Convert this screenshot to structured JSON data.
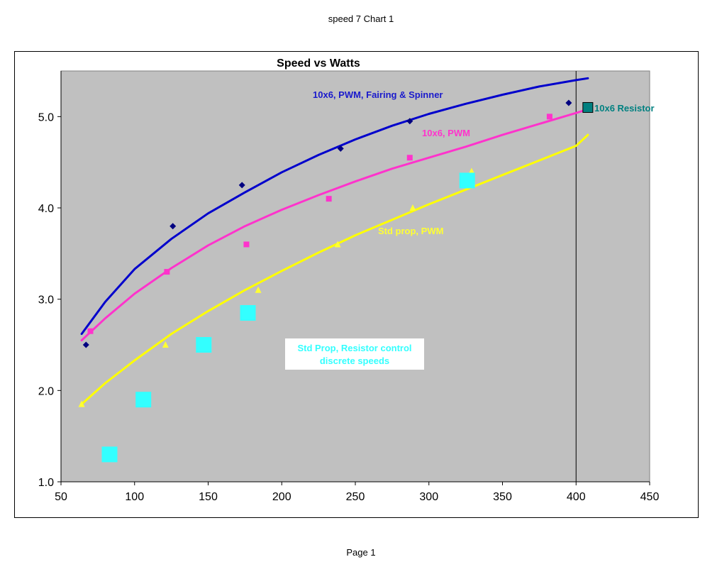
{
  "page": {
    "header": "speed 7 Chart 1",
    "footer": "Page 1"
  },
  "chart_data": {
    "type": "scatter",
    "title": "Speed vs Watts",
    "xlabel": "",
    "ylabel": "",
    "xlim": [
      50,
      450
    ],
    "ylim": [
      1.0,
      5.5
    ],
    "xticks": [
      50,
      100,
      150,
      200,
      250,
      300,
      350,
      400,
      450
    ],
    "yticks": [
      1.0,
      2.0,
      3.0,
      4.0,
      5.0
    ],
    "ytick_labels": [
      "1.0",
      "2.0",
      "3.0",
      "4.0",
      "5.0"
    ],
    "grid": false,
    "plot_background": "#c0c0c0",
    "vertical_reference_line_x": 400,
    "series": [
      {
        "label": "10x6, PWM, Fairing & Spinner",
        "color": "#000080",
        "label_color": "#1a1acc",
        "marker": "diamond",
        "points": [
          [
            67,
            2.5
          ],
          [
            126,
            3.8
          ],
          [
            173,
            4.25
          ],
          [
            240,
            4.65
          ],
          [
            287,
            4.95
          ],
          [
            395,
            5.15
          ]
        ],
        "trend_color": "#0000cc",
        "trend": [
          [
            64,
            2.62
          ],
          [
            80,
            2.97
          ],
          [
            100,
            3.33
          ],
          [
            125,
            3.66
          ],
          [
            150,
            3.94
          ],
          [
            175,
            4.17
          ],
          [
            200,
            4.39
          ],
          [
            225,
            4.58
          ],
          [
            250,
            4.75
          ],
          [
            275,
            4.9
          ],
          [
            300,
            5.03
          ],
          [
            325,
            5.14
          ],
          [
            350,
            5.24
          ],
          [
            375,
            5.33
          ],
          [
            400,
            5.4
          ],
          [
            408,
            5.42
          ]
        ]
      },
      {
        "label": "10x6, PWM",
        "color": "#ff33cc",
        "label_color": "#ff33cc",
        "marker": "square",
        "points": [
          [
            70,
            2.65
          ],
          [
            122,
            3.3
          ],
          [
            176,
            3.6
          ],
          [
            232,
            4.1
          ],
          [
            287,
            4.55
          ],
          [
            382,
            5.0
          ]
        ],
        "trend_color": "#ff33cc",
        "trend": [
          [
            64,
            2.55
          ],
          [
            80,
            2.79
          ],
          [
            100,
            3.06
          ],
          [
            125,
            3.34
          ],
          [
            150,
            3.59
          ],
          [
            175,
            3.8
          ],
          [
            200,
            3.98
          ],
          [
            225,
            4.14
          ],
          [
            250,
            4.29
          ],
          [
            275,
            4.43
          ],
          [
            300,
            4.55
          ],
          [
            325,
            4.67
          ],
          [
            350,
            4.8
          ],
          [
            375,
            4.92
          ],
          [
            400,
            5.04
          ],
          [
            408,
            5.08
          ]
        ]
      },
      {
        "label": "Std prop, PWM",
        "color": "#ffff33",
        "label_color": "#ffff33",
        "marker": "triangle",
        "points": [
          [
            64,
            1.85
          ],
          [
            121,
            2.5
          ],
          [
            184,
            3.1
          ],
          [
            238,
            3.6
          ],
          [
            289,
            4.0
          ],
          [
            329,
            4.4
          ]
        ],
        "trend_color": "#ffff00",
        "trend": [
          [
            64,
            1.85
          ],
          [
            80,
            2.08
          ],
          [
            100,
            2.33
          ],
          [
            125,
            2.62
          ],
          [
            150,
            2.87
          ],
          [
            175,
            3.1
          ],
          [
            200,
            3.31
          ],
          [
            225,
            3.51
          ],
          [
            250,
            3.7
          ],
          [
            275,
            3.87
          ],
          [
            300,
            4.04
          ],
          [
            325,
            4.2
          ],
          [
            350,
            4.36
          ],
          [
            375,
            4.52
          ],
          [
            400,
            4.68
          ],
          [
            408,
            4.8
          ]
        ]
      },
      {
        "label": "Std Prop, Resistor control discrete speeds",
        "label_lines": [
          "Std Prop, Resistor control",
          "discrete speeds"
        ],
        "color": "#33ffff",
        "label_color": "#33ffff",
        "marker": "big-square",
        "points": [
          [
            83,
            1.3
          ],
          [
            106,
            1.9
          ],
          [
            147,
            2.5
          ],
          [
            177,
            2.85
          ],
          [
            326,
            4.3
          ]
        ]
      },
      {
        "label": "10x6 Resistor",
        "color": "#008080",
        "label_color": "#008080",
        "marker": "teal-square",
        "points": [
          [
            408,
            5.1
          ]
        ]
      }
    ]
  }
}
